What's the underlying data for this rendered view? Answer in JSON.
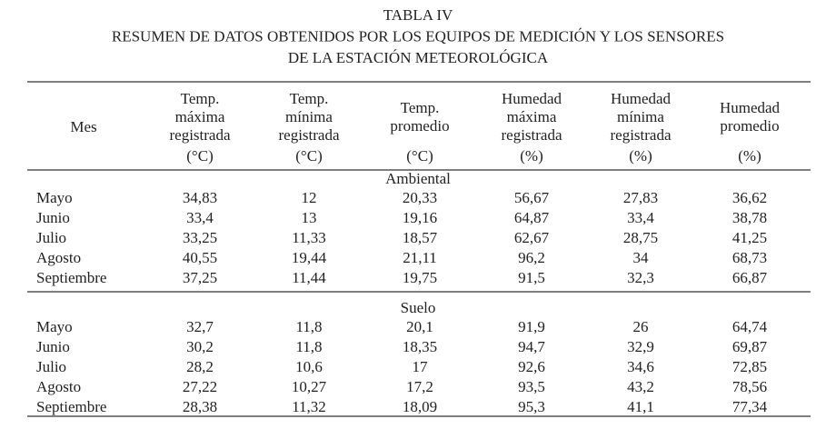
{
  "title": [
    "TABLA IV",
    "RESUMEN DE DATOS OBTENIDOS POR LOS EQUIPOS DE MEDICIÓN Y LOS SENSORES",
    "DE LA ESTACIÓN METEOROLÓGICA"
  ],
  "table": {
    "header": [
      [
        "Mes"
      ],
      [
        "Temp.",
        "máxima",
        "registrada"
      ],
      [
        "Temp.",
        "mínima",
        "registrada"
      ],
      [
        "Temp.",
        "promedio"
      ],
      [
        "Humedad",
        "máxima",
        "registrada"
      ],
      [
        "Humedad",
        "mínima",
        "registrada"
      ],
      [
        "Humedad",
        "promedio"
      ]
    ],
    "units": [
      "(°C)",
      "(°C)",
      "(°C)",
      "(%)",
      "(%)",
      "(%)"
    ],
    "sections": [
      {
        "name": "Ambiental",
        "rows": [
          [
            "Mayo",
            "34,83",
            "12",
            "20,33",
            "56,67",
            "27,83",
            "36,62"
          ],
          [
            "Junio",
            "33,4",
            "13",
            "19,16",
            "64,87",
            "33,4",
            "38,78"
          ],
          [
            "Julio",
            "33,25",
            "11,33",
            "18,57",
            "62,67",
            "28,75",
            "41,25"
          ],
          [
            "Agosto",
            "40,55",
            "19,44",
            "21,11",
            "96,2",
            "34",
            "68,73"
          ],
          [
            "Septiembre",
            "37,25",
            "11,44",
            "19,75",
            "91,5",
            "32,3",
            "66,87"
          ]
        ]
      },
      {
        "name": "Suelo",
        "rows": [
          [
            "Mayo",
            "32,7",
            "11,8",
            "20,1",
            "91,9",
            "26",
            "64,74"
          ],
          [
            "Junio",
            "30,2",
            "11,8",
            "18,35",
            "94,7",
            "32,9",
            "69,87"
          ],
          [
            "Julio",
            "28,2",
            "10,6",
            "17",
            "92,6",
            "34,6",
            "72,85"
          ],
          [
            "Agosto",
            "27,22",
            "10,27",
            "17,2",
            "93,5",
            "43,2",
            "78,56"
          ],
          [
            "Septiembre",
            "28,38",
            "11,32",
            "18,09",
            "95,3",
            "41,1",
            "77,34"
          ]
        ]
      }
    ]
  }
}
